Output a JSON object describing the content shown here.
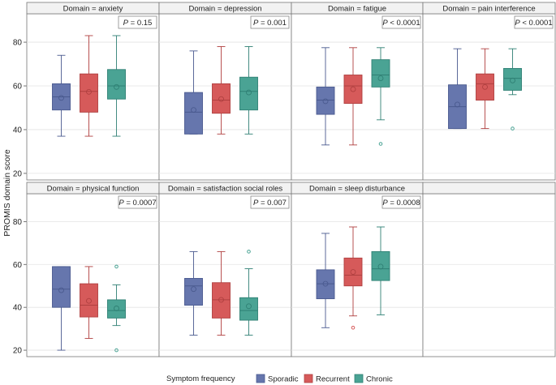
{
  "chart_data": {
    "type": "boxplot",
    "ylabel": "PROMIS domain score",
    "ylim": [
      17,
      93
    ],
    "yticks": [
      20,
      40,
      60,
      80
    ],
    "grid": true,
    "legend": {
      "title": "Symptom frequency",
      "placement": "bottom",
      "items": [
        "Sporadic",
        "Recurrent",
        "Chronic"
      ]
    },
    "series_colors": {
      "Sporadic": {
        "fill": "#6676ad",
        "edge": "#4a5a8f"
      },
      "Recurrent": {
        "fill": "#d65a5a",
        "edge": "#b04040"
      },
      "Chronic": {
        "fill": "#4aa394",
        "edge": "#2f8074"
      }
    },
    "panels": [
      {
        "title": "Domain = anxiety",
        "p_value": "= 0.15",
        "boxes": [
          {
            "group": "Sporadic",
            "whisker_low": 37,
            "q1": 49,
            "median": 55,
            "q3": 61,
            "whisker_high": 74,
            "mean": 54.5,
            "outliers": []
          },
          {
            "group": "Recurrent",
            "whisker_low": 37,
            "q1": 48,
            "median": 57.5,
            "q3": 65.5,
            "whisker_high": 83,
            "mean": 57.3,
            "outliers": []
          },
          {
            "group": "Chronic",
            "whisker_low": 37,
            "q1": 54,
            "median": 60,
            "q3": 67.5,
            "whisker_high": 83,
            "mean": 59.5,
            "outliers": []
          }
        ]
      },
      {
        "title": "Domain = depression",
        "p_value": "= 0.001",
        "boxes": [
          {
            "group": "Sporadic",
            "whisker_low": 38,
            "q1": 38,
            "median": 48,
            "q3": 57,
            "whisker_high": 76,
            "mean": 49,
            "outliers": []
          },
          {
            "group": "Recurrent",
            "whisker_low": 38,
            "q1": 47.5,
            "median": 53.5,
            "q3": 61,
            "whisker_high": 78,
            "mean": 54,
            "outliers": []
          },
          {
            "group": "Chronic",
            "whisker_low": 38,
            "q1": 49,
            "median": 57.5,
            "q3": 64,
            "whisker_high": 78,
            "mean": 57,
            "outliers": []
          }
        ]
      },
      {
        "title": "Domain = fatigue",
        "p_value": "< 0.0001",
        "boxes": [
          {
            "group": "Sporadic",
            "whisker_low": 33,
            "q1": 47,
            "median": 53.5,
            "q3": 59.5,
            "whisker_high": 77.5,
            "mean": 53,
            "outliers": []
          },
          {
            "group": "Recurrent",
            "whisker_low": 33,
            "q1": 52,
            "median": 60,
            "q3": 65,
            "whisker_high": 77.5,
            "mean": 58.5,
            "outliers": []
          },
          {
            "group": "Chronic",
            "whisker_low": 44.5,
            "q1": 59.5,
            "median": 65,
            "q3": 72,
            "whisker_high": 77.5,
            "mean": 63.5,
            "outliers": [
              33.5
            ]
          }
        ]
      },
      {
        "title": "Domain = pain interference",
        "p_value": "< 0.0001",
        "boxes": [
          {
            "group": "Sporadic",
            "whisker_low": 40.5,
            "q1": 40.5,
            "median": 50.5,
            "q3": 60.5,
            "whisker_high": 77,
            "mean": 51.5,
            "outliers": []
          },
          {
            "group": "Recurrent",
            "whisker_low": 40.5,
            "q1": 53.5,
            "median": 61,
            "q3": 65.5,
            "whisker_high": 77,
            "mean": 59.5,
            "outliers": []
          },
          {
            "group": "Chronic",
            "whisker_low": 56,
            "q1": 58,
            "median": 63.5,
            "q3": 68,
            "whisker_high": 77,
            "mean": 62.5,
            "outliers": [
              40.5
            ]
          }
        ]
      },
      {
        "title": "Domain = physical function",
        "p_value": "= 0.0007",
        "boxes": [
          {
            "group": "Sporadic",
            "whisker_low": 20,
            "q1": 40,
            "median": 48.5,
            "q3": 59,
            "whisker_high": 59,
            "mean": 48,
            "outliers": []
          },
          {
            "group": "Recurrent",
            "whisker_low": 25.5,
            "q1": 35.5,
            "median": 41,
            "q3": 51,
            "whisker_high": 59,
            "mean": 43,
            "outliers": []
          },
          {
            "group": "Chronic",
            "whisker_low": 31.5,
            "q1": 35,
            "median": 38.5,
            "q3": 43.5,
            "whisker_high": 50.5,
            "mean": 39.5,
            "outliers": [
              59,
              20
            ]
          }
        ]
      },
      {
        "title": "Domain = satisfaction social roles",
        "p_value": "= 0.007",
        "boxes": [
          {
            "group": "Sporadic",
            "whisker_low": 27,
            "q1": 41,
            "median": 50,
            "q3": 53.5,
            "whisker_high": 66,
            "mean": 48.5,
            "outliers": []
          },
          {
            "group": "Recurrent",
            "whisker_low": 27,
            "q1": 35,
            "median": 43.5,
            "q3": 51.5,
            "whisker_high": 66,
            "mean": 43.5,
            "outliers": []
          },
          {
            "group": "Chronic",
            "whisker_low": 27,
            "q1": 34,
            "median": 38.5,
            "q3": 44.5,
            "whisker_high": 58,
            "mean": 40.5,
            "outliers": [
              66
            ]
          }
        ]
      },
      {
        "title": "Domain = sleep disturbance",
        "p_value": "= 0.0008",
        "boxes": [
          {
            "group": "Sporadic",
            "whisker_low": 30.5,
            "q1": 44,
            "median": 51,
            "q3": 57.5,
            "whisker_high": 74.5,
            "mean": 51,
            "outliers": []
          },
          {
            "group": "Recurrent",
            "whisker_low": 36,
            "q1": 50,
            "median": 55,
            "q3": 63,
            "whisker_high": 77.5,
            "mean": 56.5,
            "outliers": [
              30.5
            ]
          },
          {
            "group": "Chronic",
            "whisker_low": 36.5,
            "q1": 52.5,
            "median": 58,
            "q3": 66,
            "whisker_high": 77.5,
            "mean": 59,
            "outliers": []
          }
        ]
      }
    ]
  }
}
